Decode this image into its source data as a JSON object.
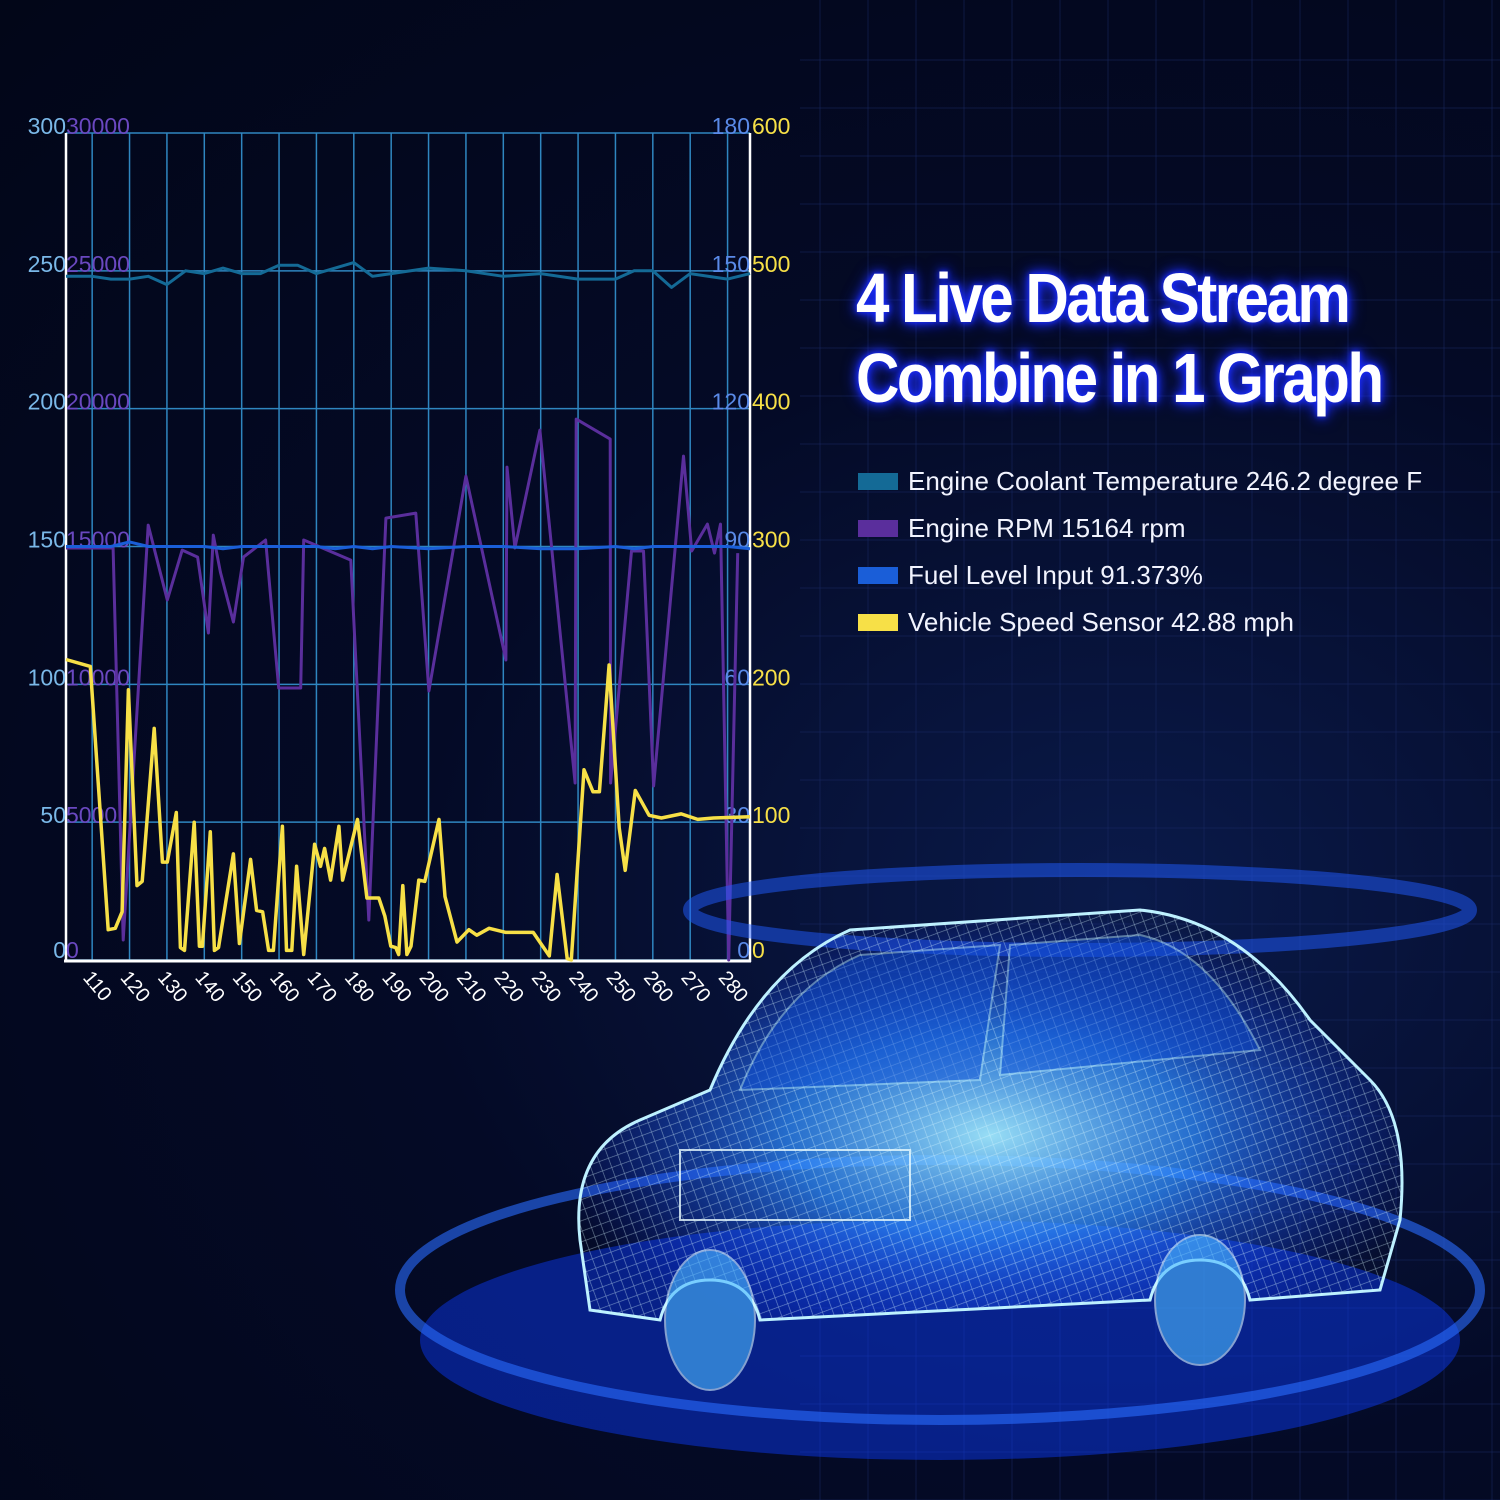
{
  "headline": {
    "line1": "4 Live Data Stream",
    "line2": "Combine in 1 Graph"
  },
  "legend": [
    {
      "label": "Engine Coolant Temperature 246.2 degree F",
      "color": "#146a96"
    },
    {
      "label": "Engine RPM 15164 rpm",
      "color": "#5a2e9c"
    },
    {
      "label": "Fuel Level Input 91.373%",
      "color": "#1a5ed8"
    },
    {
      "label": "Vehicle Speed Sensor 42.88 mph",
      "color": "#f7e047"
    }
  ],
  "chart_data": {
    "type": "line",
    "title": "",
    "grid": true,
    "xlim": [
      103,
      286
    ],
    "x_ticks": [
      "110",
      "120",
      "130",
      "140",
      "150",
      "160",
      "170",
      "180",
      "190",
      "200",
      "210",
      "220",
      "230",
      "240",
      "250",
      "260",
      "270",
      "280"
    ],
    "axes": [
      {
        "side": "left-outer",
        "range": [
          0,
          300
        ],
        "ticks": [
          "0",
          "50",
          "100",
          "150",
          "200",
          "250",
          "300"
        ],
        "color": "#7ab8e8"
      },
      {
        "side": "left-inner",
        "range": [
          0,
          30000
        ],
        "ticks": [
          "0",
          "5000",
          "10000",
          "15000",
          "20000",
          "25000",
          "30000"
        ],
        "color": "#6a48c0"
      },
      {
        "side": "right-inner",
        "range": [
          0,
          180
        ],
        "ticks": [
          "0",
          "30",
          "60",
          "90",
          "120",
          "150",
          "180"
        ],
        "color": "#5a8ae8"
      },
      {
        "side": "right-outer",
        "range": [
          0,
          600
        ],
        "ticks": [
          "0",
          "100",
          "200",
          "300",
          "400",
          "500",
          "600"
        ],
        "color": "#f7e047"
      }
    ],
    "series": [
      {
        "name": "Engine Coolant Temperature",
        "axis": 0,
        "color": "#146a96",
        "x": [
          103,
          110,
          115,
          120,
          125,
          130,
          135,
          140,
          145,
          150,
          155,
          160,
          165,
          170,
          175,
          180,
          185,
          190,
          200,
          210,
          220,
          230,
          240,
          250,
          255,
          260,
          265,
          270,
          280,
          286
        ],
        "y": [
          248,
          248,
          247,
          247,
          248,
          245,
          250,
          249,
          251,
          249,
          249,
          252,
          252,
          249,
          251,
          253,
          248,
          249,
          251,
          250,
          248,
          249,
          247,
          247,
          250,
          250,
          244,
          249,
          247,
          249
        ]
      },
      {
        "name": "Engine RPM",
        "axis": 1,
        "color": "#5a2e9c",
        "x": [
          103,
          115.6,
          118.3,
          125,
          130.1,
          134.1,
          138.2,
          141.1,
          142.4,
          144.3,
          147.8,
          150.5,
          156.4,
          159.9,
          165.8,
          166.6,
          179.2,
          184,
          188.6,
          196.6,
          200.1,
          210,
          220.7,
          221,
          223.1,
          229.8,
          239.2,
          239.5,
          248.6,
          248.7,
          254.3,
          257.5,
          260.2,
          268.2,
          270.4,
          274.6,
          276.5,
          278.1,
          280.3,
          282.7
        ],
        "y": [
          14944,
          14944,
          725,
          15778,
          13058,
          14871,
          14617,
          11861,
          15415,
          14073,
          12260,
          14617,
          15234,
          9866,
          9866,
          15234,
          14508,
          1451,
          16032,
          16213,
          9757,
          17555,
          10881,
          17882,
          14944,
          19224,
          6420,
          19623,
          18897,
          6420,
          14835,
          14835,
          6311,
          18281,
          14835,
          15814,
          14762,
          15814,
          0,
          14762
        ]
      },
      {
        "name": "Fuel Level Input",
        "axis": 2,
        "color": "#1a5ed8",
        "x": [
          103,
          110,
          115,
          120,
          125,
          130,
          135,
          140,
          145,
          150,
          155,
          160,
          165,
          170,
          175,
          180,
          185,
          190,
          200,
          210,
          220,
          230,
          240,
          250,
          255,
          260,
          265,
          270,
          280,
          286
        ],
        "y": [
          90,
          90,
          90,
          91,
          90,
          90,
          90,
          90,
          89.5,
          90,
          90,
          90,
          90,
          90,
          89.5,
          90,
          89.5,
          90,
          89.5,
          90,
          90,
          89.5,
          89.5,
          90,
          89.5,
          90,
          90,
          90,
          90,
          89.5
        ]
      },
      {
        "name": "Vehicle Speed Sensor",
        "axis": 3,
        "color": "#f7e047",
        "x": [
          103,
          109.5,
          114.3,
          116.2,
          118,
          119.7,
          122,
          123.4,
          126.6,
          128.8,
          130.1,
          132.5,
          133.6,
          134.7,
          137.3,
          138.7,
          139.5,
          141.6,
          142.7,
          143.8,
          147.8,
          149.4,
          152.4,
          154,
          155.6,
          157.2,
          158.5,
          160.9,
          162,
          163.4,
          164.7,
          166.6,
          169.5,
          171.1,
          172.2,
          173.8,
          176,
          177,
          181,
          183.5,
          186.7,
          188.3,
          189.9,
          191.2,
          192,
          193.1,
          194.2,
          195.3,
          197.4,
          199,
          202.8,
          204.4,
          207.6,
          210.8,
          212.9,
          216.2,
          220.7,
          228,
          232.3,
          234.4,
          237.1,
          238.2,
          241.6,
          244,
          245.7,
          248.3,
          251,
          252.6,
          255.3,
          259,
          262.3,
          267.6,
          272,
          276.2,
          286
        ],
        "y": [
          218,
          213,
          22,
          23,
          35,
          196,
          54,
          57,
          168,
          71,
          71,
          107,
          9,
          7,
          100,
          10,
          10,
          93,
          7,
          9,
          77,
          12,
          73,
          36,
          35,
          7,
          7,
          97,
          7,
          7,
          68,
          4,
          84,
          68,
          81,
          58,
          97,
          58,
          102,
          45,
          45,
          32,
          10,
          9,
          4,
          54,
          4,
          10,
          58,
          57,
          102,
          46,
          13,
          22,
          18,
          23,
          20,
          20,
          3,
          62,
          1,
          0,
          138,
          122,
          122,
          214,
          96,
          65,
          123,
          105,
          103,
          106,
          102,
          103,
          104
        ]
      }
    ]
  }
}
